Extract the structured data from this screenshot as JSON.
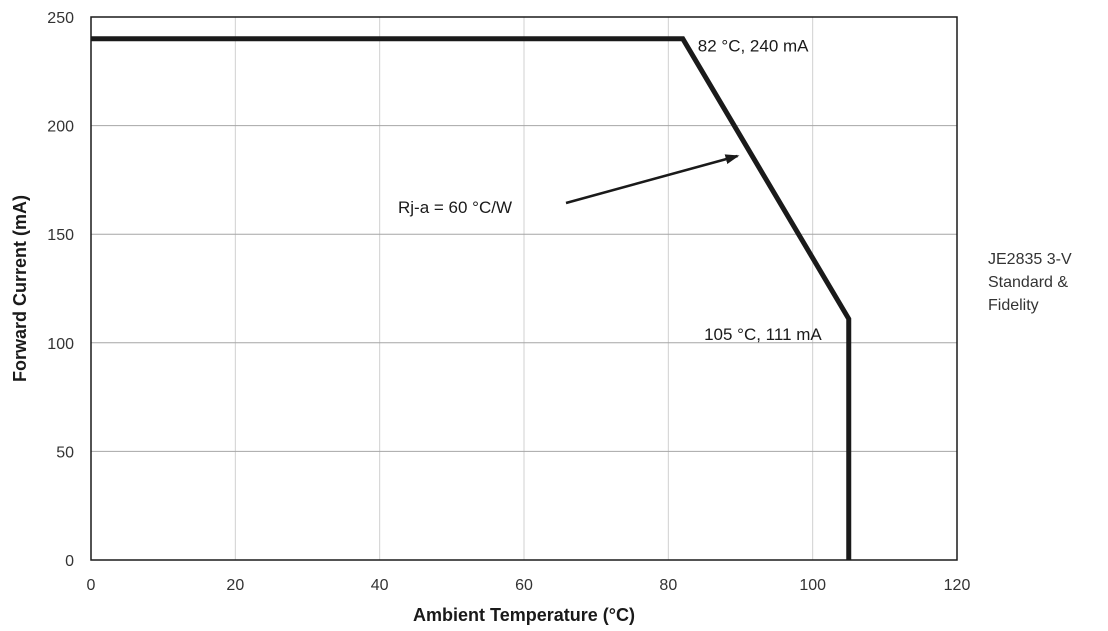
{
  "chart_data": {
    "type": "line",
    "title": "",
    "xlabel": "Ambient Temperature (°C)",
    "ylabel": "Forward Current (mA)",
    "xlim": [
      0,
      120
    ],
    "ylim": [
      0,
      250
    ],
    "xticks": [
      "0",
      "20",
      "40",
      "60",
      "80",
      "100",
      "120"
    ],
    "yticks": [
      "0",
      "50",
      "100",
      "150",
      "200",
      "250"
    ],
    "grid": true,
    "series": [
      {
        "x": [
          0,
          82,
          105,
          105
        ],
        "y": [
          240,
          240,
          111,
          0
        ]
      }
    ],
    "annotations": [
      {
        "text": "82 °C, 240 mA",
        "x": 82,
        "y": 240
      },
      {
        "text": "105 °C, 111 mA",
        "x": 105,
        "y": 111
      },
      {
        "text": "Rj-a = 60 °C/W",
        "arrow_to": {
          "x": 90,
          "y": 186
        }
      }
    ],
    "side_note_lines": [
      "JE2835 3-V",
      "Standard &",
      "Fidelity"
    ]
  }
}
